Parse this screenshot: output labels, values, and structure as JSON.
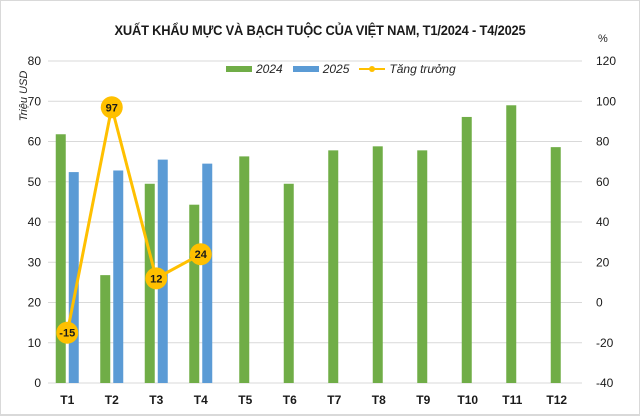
{
  "title": "XUẤT KHẨU MỰC VÀ BẠCH TUỘC CỦA VIỆT NAM, T1/2024 - T4/2025",
  "left_axis_label": "Triệu USD",
  "right_axis_label": "%",
  "legend": {
    "series_2024": "2024",
    "series_2025": "2025",
    "growth": "Tăng trưởng"
  },
  "colors": {
    "series_2024": "#70ad47",
    "series_2025": "#5b9bd5",
    "growth": "#ffc000",
    "grid": "#d9d9d9"
  },
  "chart_data": {
    "type": "bar",
    "title": "XUẤT KHẨU MỰC VÀ BẠCH TUỘC CỦA VIỆT NAM, T1/2024 - T4/2025",
    "xlabel": "",
    "ylabel": "Triệu USD",
    "y2label": "%",
    "categories": [
      "T1",
      "T2",
      "T3",
      "T4",
      "T5",
      "T6",
      "T7",
      "T8",
      "T9",
      "T10",
      "T11",
      "T12"
    ],
    "series": [
      {
        "name": "2024",
        "type": "bar",
        "axis": "left",
        "values": [
          61.8,
          26.8,
          49.5,
          44.3,
          56.3,
          49.5,
          57.8,
          58.8,
          57.8,
          66.1,
          69.0,
          58.6
        ]
      },
      {
        "name": "2025",
        "type": "bar",
        "axis": "left",
        "values": [
          52.4,
          52.8,
          55.5,
          54.5,
          null,
          null,
          null,
          null,
          null,
          null,
          null,
          null
        ]
      },
      {
        "name": "Tăng trưởng",
        "type": "line",
        "axis": "right",
        "values": [
          -15,
          97,
          12,
          24,
          null,
          null,
          null,
          null,
          null,
          null,
          null,
          null
        ],
        "labels": [
          "-15",
          "97",
          "12",
          "24"
        ]
      }
    ],
    "ylim": [
      0,
      80
    ],
    "yticks": [
      0,
      10,
      20,
      30,
      40,
      50,
      60,
      70,
      80
    ],
    "y2lim": [
      -40,
      120
    ],
    "y2ticks": [
      -40,
      -20,
      0,
      20,
      40,
      60,
      80,
      100,
      120
    ],
    "grid": true,
    "legend_position": "top"
  }
}
